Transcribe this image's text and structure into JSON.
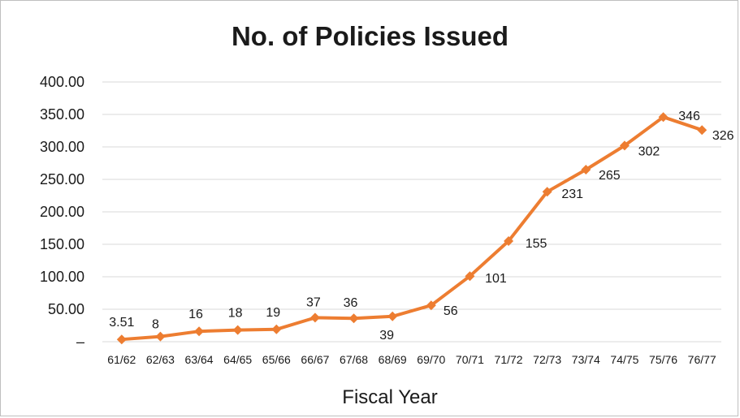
{
  "chart_data": {
    "type": "line",
    "title": "No. of Policies Issued",
    "xlabel": "Fiscal Year",
    "ylabel": "",
    "categories": [
      "61/62",
      "62/63",
      "63/64",
      "64/65",
      "65/66",
      "66/67",
      "67/68",
      "68/69",
      "69/70",
      "70/71",
      "71/72",
      "72/73",
      "73/74",
      "74/75",
      "75/76",
      "76/77"
    ],
    "values": [
      3.51,
      8,
      16,
      18,
      19,
      37,
      36,
      39,
      56,
      101,
      155,
      231,
      265,
      302,
      346,
      326
    ],
    "data_labels": [
      "3.51",
      "8",
      "16",
      "18",
      "19",
      "37",
      "36",
      "39",
      "56",
      "101",
      "155",
      "231",
      "265",
      "302",
      "346",
      "326"
    ],
    "y_ticks": [
      0,
      50,
      100,
      150,
      200,
      250,
      300,
      350,
      400
    ],
    "y_tick_labels": [
      "–",
      "50.00",
      "100.00",
      "150.00",
      "200.00",
      "250.00",
      "300.00",
      "350.00",
      "400.00"
    ],
    "ylim": [
      0,
      400
    ],
    "grid": true,
    "legend": "none",
    "line_color": "#ed7d31",
    "grid_color": "#d9d9d9"
  }
}
